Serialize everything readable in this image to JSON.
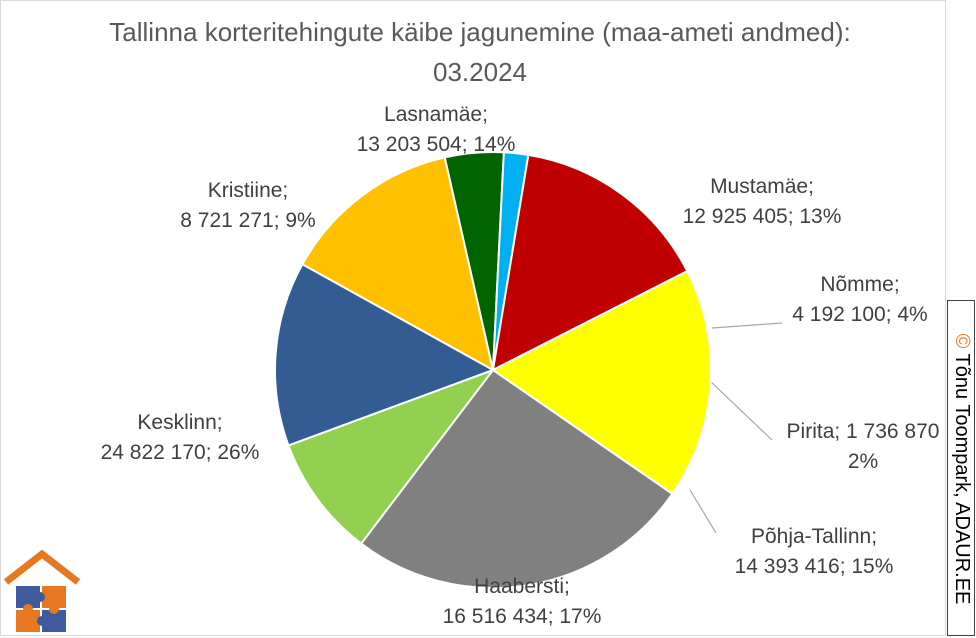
{
  "chart_data": {
    "type": "pie",
    "title": "Tallinna korteritehingute käibe jagunemine (maa-ameti andmed): 03.2024",
    "slices": [
      {
        "name": "Mustamäe",
        "value": 12925405,
        "percent": "13%",
        "value_text": "12 925 405",
        "color": "#FFC000"
      },
      {
        "name": "Nõmme",
        "value": 4192100,
        "percent": "4%",
        "value_text": "4 192 100",
        "color": "#006400"
      },
      {
        "name": "Pirita",
        "value": 1736870,
        "percent": "2%",
        "value_text": "1 736 870",
        "color": "#00B0F0"
      },
      {
        "name": "Põhja-Tallinn",
        "value": 14393416,
        "percent": "15%",
        "value_text": "14 393 416",
        "color": "#C00000"
      },
      {
        "name": "Haabersti",
        "value": 16516434,
        "percent": "17%",
        "value_text": "16 516 434",
        "color": "#FFFF00"
      },
      {
        "name": "Kesklinn",
        "value": 24822170,
        "percent": "26%",
        "value_text": "24 822 170",
        "color": "#808080"
      },
      {
        "name": "Kristiine",
        "value": 8721271,
        "percent": "9%",
        "value_text": "8 721 271",
        "color": "#92D050"
      },
      {
        "name": "Lasnamäe",
        "value": 13203504,
        "percent": "14%",
        "value_text": "13 203 504",
        "color": "#335D92"
      }
    ]
  },
  "watermark": {
    "symbol": "©",
    "text": "Tõnu Toompark, ADAUR.EE",
    "accent_color": "#E87722"
  },
  "logo": {
    "icon": "house-puzzle-icon",
    "colors": [
      "#E87722",
      "#3F5B9E"
    ]
  }
}
